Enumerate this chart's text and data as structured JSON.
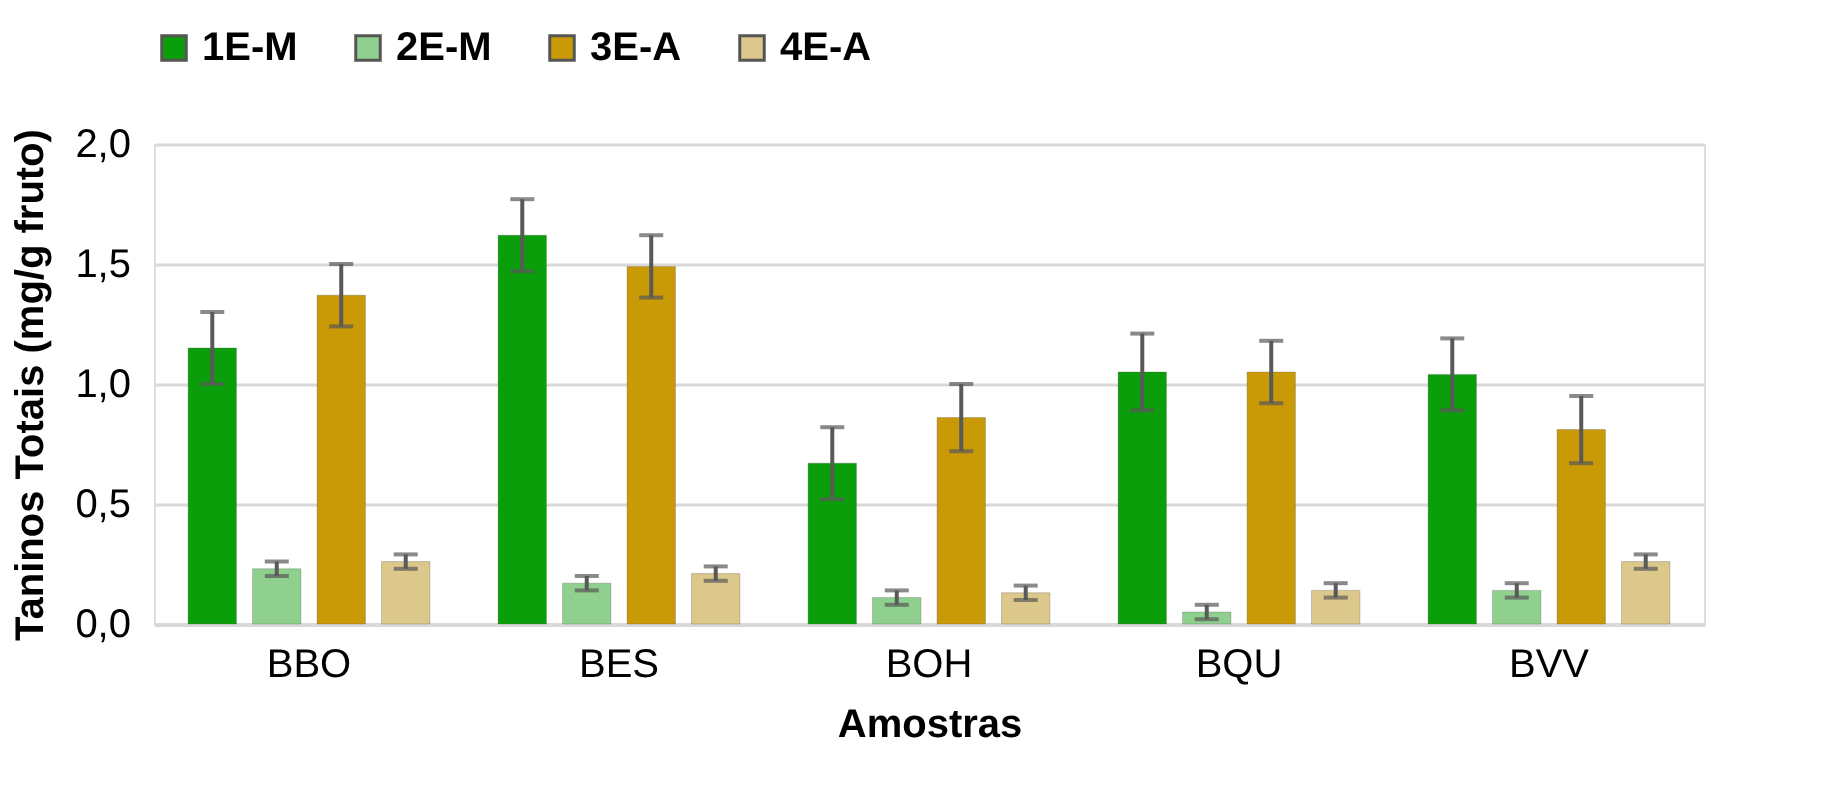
{
  "chart_data": {
    "type": "bar",
    "xlabel": "Amostras",
    "ylabel": "Taninos Totais (mg/g fruto)",
    "categories": [
      "BBO",
      "BES",
      "BOH",
      "BQU",
      "BVV"
    ],
    "series": [
      {
        "name": "1E-M",
        "color": "#0a9e0a",
        "values": [
          1.15,
          1.62,
          0.67,
          1.05,
          1.04
        ],
        "errors": [
          0.15,
          0.15,
          0.15,
          0.16,
          0.15
        ]
      },
      {
        "name": "2E-M",
        "color": "#8fd08f",
        "values": [
          0.23,
          0.17,
          0.11,
          0.05,
          0.14
        ],
        "errors": [
          0.03,
          0.03,
          0.03,
          0.03,
          0.03
        ]
      },
      {
        "name": "3E-A",
        "color": "#c99a06",
        "values": [
          1.37,
          1.49,
          0.86,
          1.05,
          0.81
        ],
        "errors": [
          0.13,
          0.13,
          0.14,
          0.13,
          0.14
        ]
      },
      {
        "name": "4E-A",
        "color": "#dcc88a",
        "values": [
          0.26,
          0.21,
          0.13,
          0.14,
          0.26
        ],
        "errors": [
          0.03,
          0.03,
          0.03,
          0.03,
          0.03
        ]
      }
    ],
    "ylim": [
      0,
      2.0
    ],
    "yticks": [
      {
        "value": 0,
        "label": "0,0"
      },
      {
        "value": 0.5,
        "label": "0,5"
      },
      {
        "value": 1.0,
        "label": "1,0"
      },
      {
        "value": 1.5,
        "label": "1,5"
      },
      {
        "value": 2.0,
        "label": "2,0"
      }
    ],
    "grid": "y",
    "legend": "top"
  }
}
